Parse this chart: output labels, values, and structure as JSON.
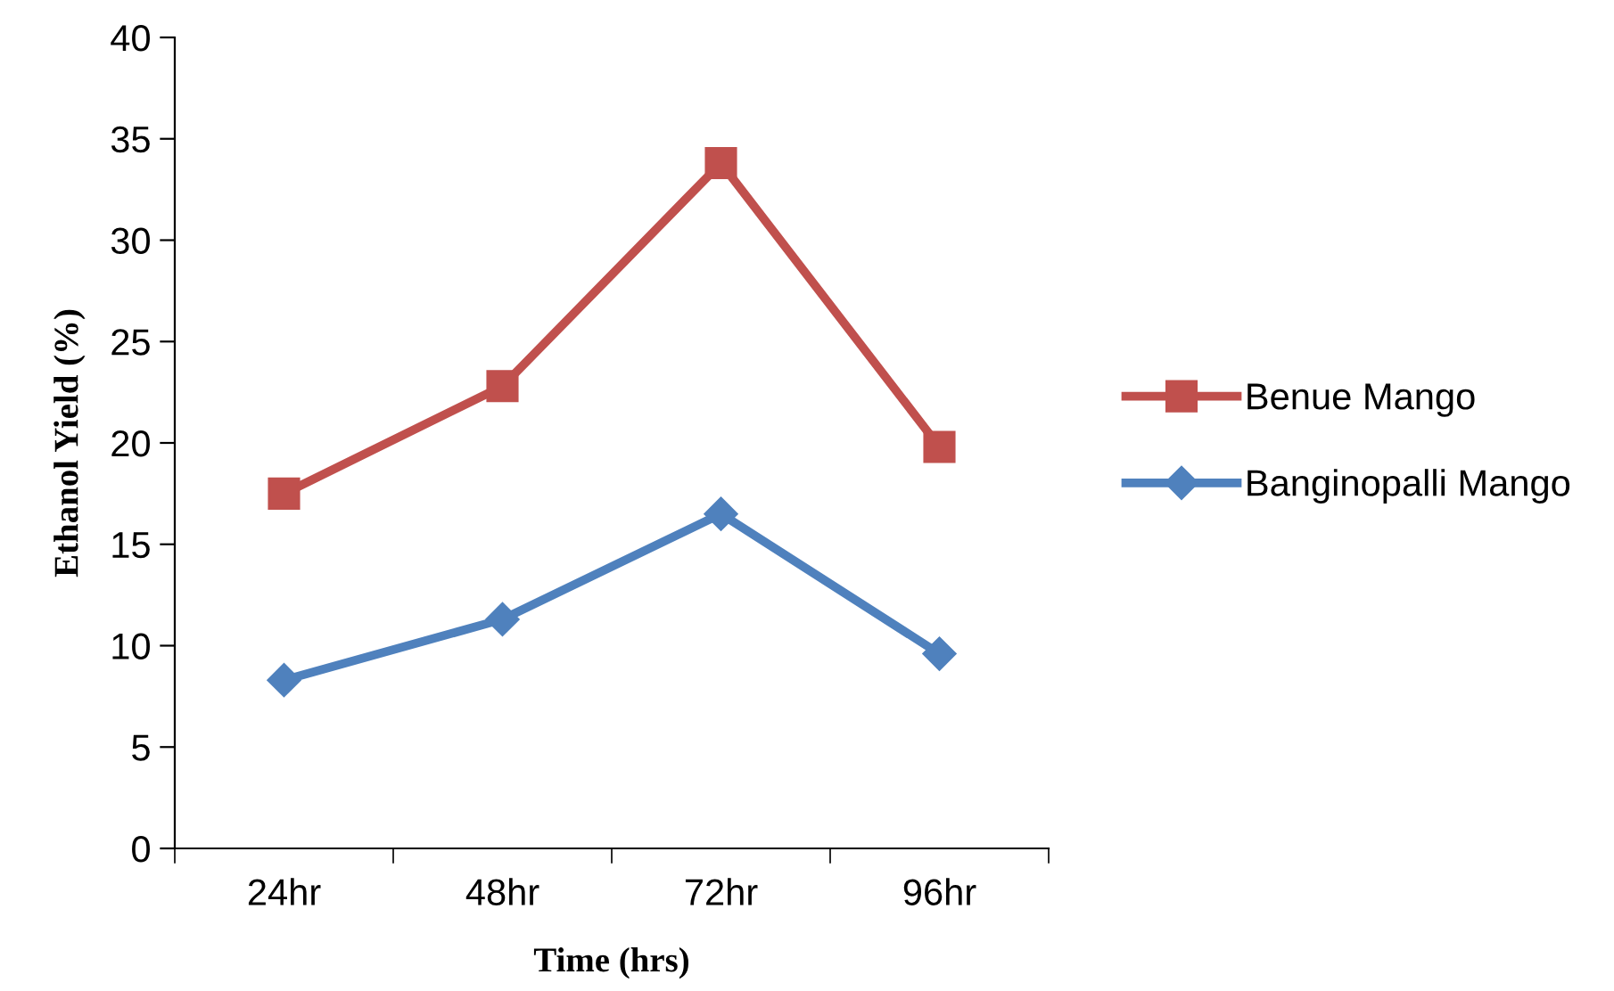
{
  "chart_data": {
    "type": "line",
    "xlabel": "Time (hrs)",
    "ylabel": "Ethanol Yield (%)",
    "categories": [
      "24hr",
      "48hr",
      "72hr",
      "96hr"
    ],
    "series": [
      {
        "name": "Benue Mango",
        "color": "#c0504d",
        "marker": "square",
        "values": [
          17.5,
          22.8,
          33.8,
          19.8
        ]
      },
      {
        "name": "Banginopalli Mango",
        "color": "#4f81bd",
        "marker": "diamond",
        "values": [
          8.3,
          11.3,
          16.5,
          9.6
        ]
      }
    ],
    "ylim": [
      0,
      40
    ],
    "yticks": [
      0,
      5,
      10,
      15,
      20,
      25,
      30,
      35,
      40
    ],
    "grid": false,
    "legend": "right",
    "line_style": "solid"
  }
}
